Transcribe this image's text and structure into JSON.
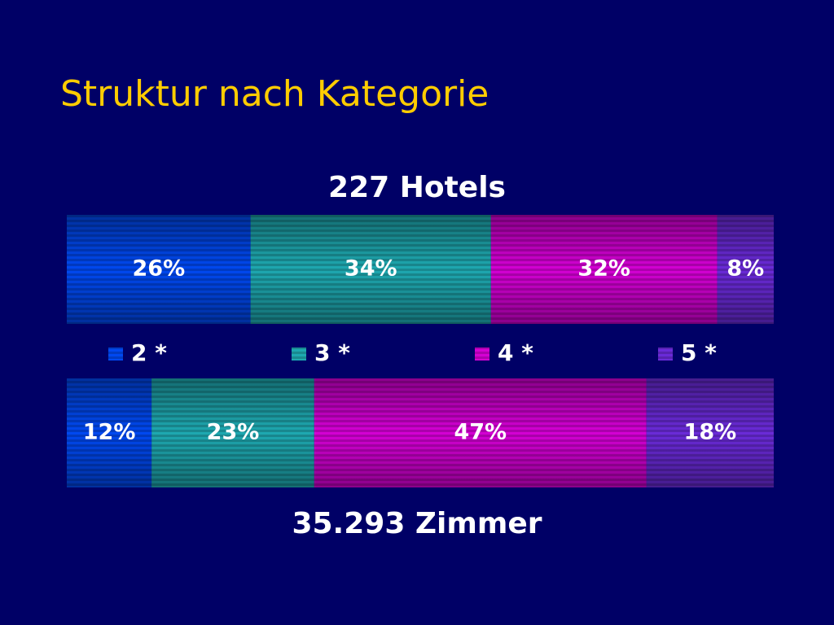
{
  "chart_data": {
    "type": "stacked-bar",
    "title": "Struktur nach Kategorie",
    "categories": [
      "227 Hotels",
      "35.293 Zimmer"
    ],
    "series": [
      {
        "name": "2 *",
        "color": "#0048f0",
        "values": [
          26,
          12
        ],
        "value_labels": [
          "26%",
          "12%"
        ]
      },
      {
        "name": "3 *",
        "color": "#1ea8b0",
        "values": [
          34,
          23
        ],
        "value_labels": [
          "34%",
          "23%"
        ]
      },
      {
        "name": "4 *",
        "color": "#d400d4",
        "values": [
          32,
          47
        ],
        "value_labels": [
          "32%",
          "47%"
        ]
      },
      {
        "name": "5 *",
        "color": "#6a2ad8",
        "values": [
          8,
          18
        ],
        "value_labels": [
          "8%",
          "18%"
        ]
      }
    ]
  }
}
